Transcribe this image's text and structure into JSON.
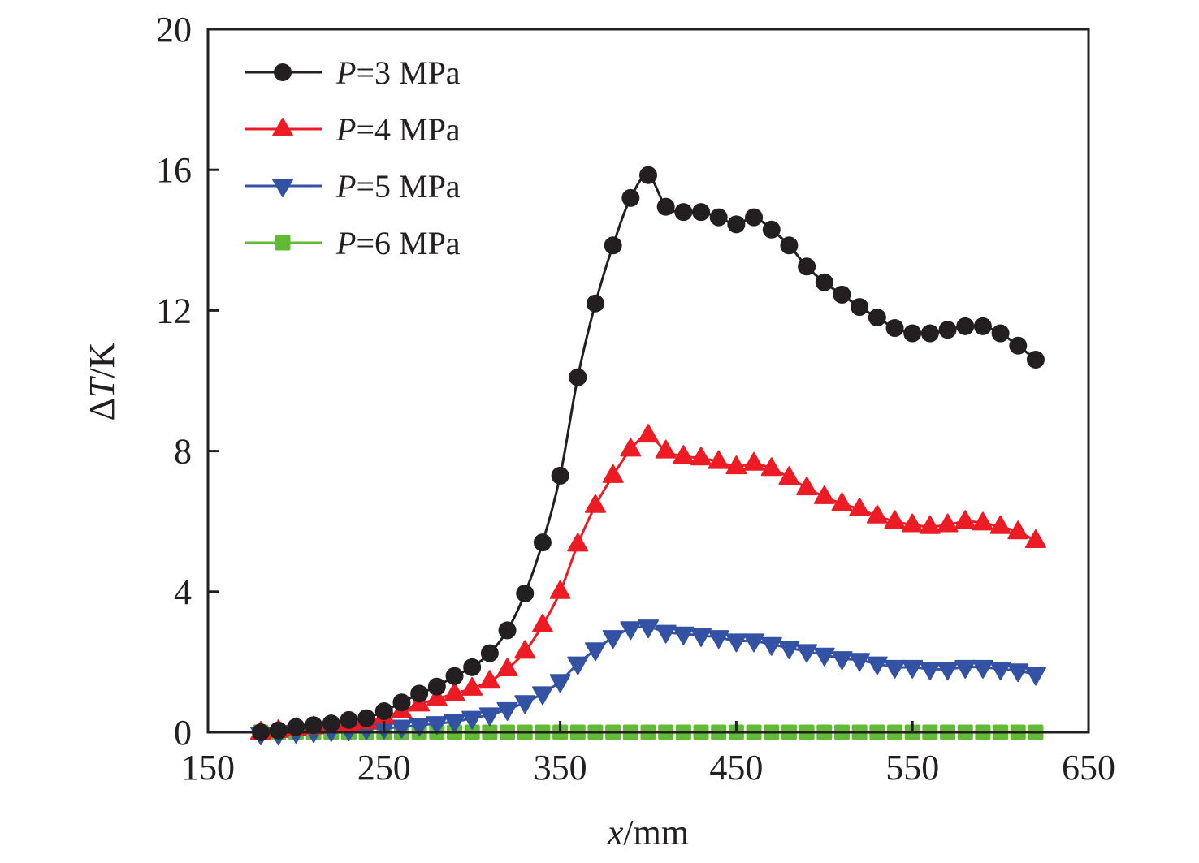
{
  "chart_data": {
    "type": "line",
    "title": "",
    "xlabel": {
      "italic": "x",
      "rest": "/mm"
    },
    "ylabel": {
      "prefix": "Δ",
      "italic": "T",
      "rest": "/K"
    },
    "xlim": [
      150,
      650
    ],
    "ylim": [
      0,
      20
    ],
    "xticks": [
      150,
      250,
      350,
      450,
      550,
      650
    ],
    "yticks": [
      0,
      4,
      8,
      12,
      16,
      20
    ],
    "grid": false,
    "legend_position": "top-left",
    "x": [
      180,
      190,
      200,
      210,
      220,
      230,
      240,
      250,
      260,
      270,
      280,
      290,
      300,
      310,
      320,
      330,
      340,
      350,
      360,
      370,
      380,
      390,
      400,
      410,
      420,
      430,
      440,
      450,
      460,
      470,
      480,
      490,
      500,
      510,
      520,
      530,
      540,
      550,
      560,
      570,
      580,
      590,
      600,
      610,
      620
    ],
    "series": [
      {
        "name": "P=3 MPa",
        "label_italic": "P",
        "label_rest": "=3 MPa",
        "color": "#231f20",
        "marker": "circle",
        "values": [
          0.0,
          0.05,
          0.15,
          0.2,
          0.25,
          0.35,
          0.4,
          0.6,
          0.85,
          1.1,
          1.3,
          1.6,
          1.85,
          2.25,
          2.9,
          3.95,
          5.4,
          7.3,
          10.1,
          12.2,
          13.85,
          15.2,
          15.85,
          14.95,
          14.8,
          14.8,
          14.65,
          14.45,
          14.65,
          14.3,
          13.85,
          13.25,
          12.8,
          12.45,
          12.1,
          11.8,
          11.5,
          11.35,
          11.35,
          11.45,
          11.55,
          11.55,
          11.35,
          11.0,
          10.6
        ]
      },
      {
        "name": "P=4 MPa",
        "label_italic": "P",
        "label_rest": "=4 MPa",
        "color": "#ed1c24",
        "marker": "triangle-up",
        "values": [
          0.0,
          0.05,
          0.1,
          0.15,
          0.2,
          0.25,
          0.3,
          0.45,
          0.6,
          0.8,
          0.95,
          1.1,
          1.25,
          1.45,
          1.8,
          2.3,
          3.05,
          4.0,
          5.35,
          6.45,
          7.3,
          8.05,
          8.45,
          8.0,
          7.85,
          7.8,
          7.7,
          7.55,
          7.65,
          7.5,
          7.25,
          6.95,
          6.7,
          6.5,
          6.35,
          6.15,
          6.0,
          5.9,
          5.85,
          5.9,
          6.0,
          5.95,
          5.85,
          5.7,
          5.45
        ]
      },
      {
        "name": "P=5 MPa",
        "label_italic": "P",
        "label_rest": "=5 MPa",
        "color": "#3452a4",
        "marker": "triangle-down",
        "values": [
          -0.05,
          -0.05,
          0.0,
          0.02,
          0.05,
          0.07,
          0.1,
          0.12,
          0.15,
          0.2,
          0.25,
          0.3,
          0.4,
          0.5,
          0.65,
          0.85,
          1.1,
          1.45,
          1.95,
          2.35,
          2.7,
          2.95,
          3.0,
          2.85,
          2.8,
          2.75,
          2.7,
          2.6,
          2.6,
          2.5,
          2.4,
          2.3,
          2.2,
          2.1,
          2.05,
          1.95,
          1.85,
          1.85,
          1.8,
          1.8,
          1.85,
          1.85,
          1.8,
          1.75,
          1.65
        ]
      },
      {
        "name": "P=6 MPa",
        "label_italic": "P",
        "label_rest": "=6 MPa",
        "color": "#62bb35",
        "marker": "square",
        "values": [
          0,
          0,
          0,
          0,
          0,
          0,
          0,
          0,
          0,
          0,
          0,
          0,
          0,
          0,
          0,
          0,
          0,
          0,
          0,
          0,
          0,
          0,
          0,
          0,
          0,
          0,
          0,
          0,
          0,
          0,
          0,
          0,
          0,
          0,
          0,
          0,
          0,
          0,
          0,
          0,
          0,
          0,
          0,
          0,
          0
        ]
      }
    ]
  }
}
